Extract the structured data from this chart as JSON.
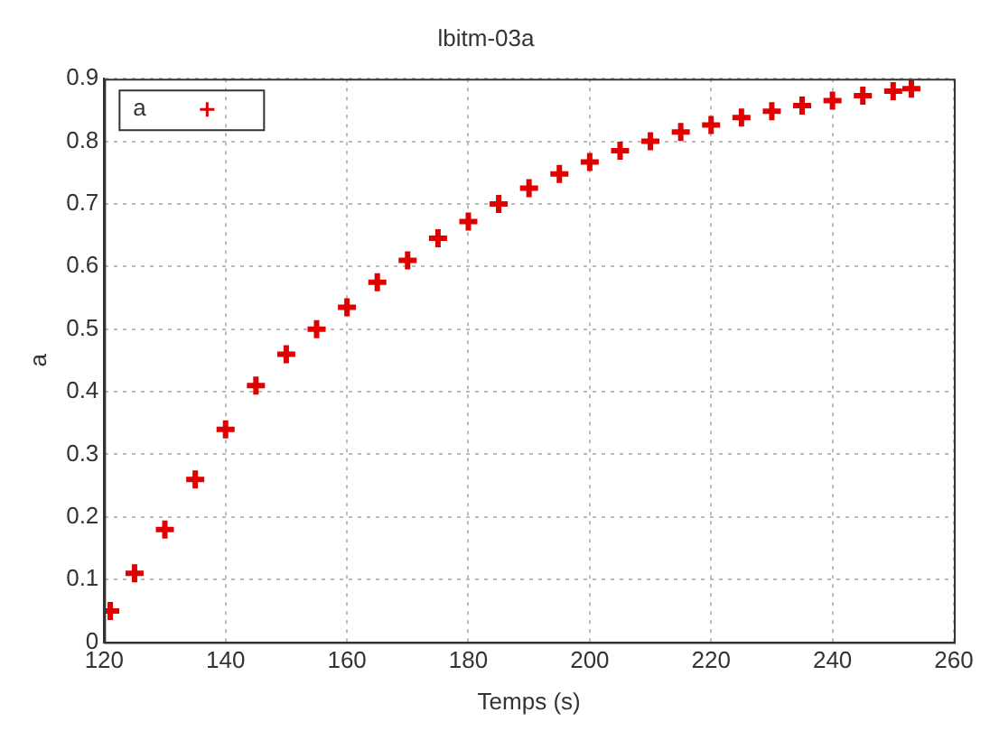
{
  "chart_data": {
    "type": "scatter",
    "title": "lbitm-03a",
    "xlabel": "Temps (s)",
    "ylabel": "a",
    "x": [
      121,
      125,
      130,
      135,
      140,
      145,
      150,
      155,
      160,
      165,
      170,
      175,
      180,
      185,
      190,
      195,
      200,
      205,
      210,
      215,
      220,
      225,
      230,
      235,
      240,
      245,
      250,
      253
    ],
    "series": [
      {
        "name": "a",
        "color": "#e00000",
        "values": [
          0.05,
          0.11,
          0.18,
          0.26,
          0.34,
          0.41,
          0.46,
          0.5,
          0.535,
          0.575,
          0.61,
          0.645,
          0.672,
          0.7,
          0.725,
          0.748,
          0.767,
          0.785,
          0.8,
          0.815,
          0.826,
          0.838,
          0.848,
          0.857,
          0.865,
          0.873,
          0.88,
          0.884
        ]
      }
    ],
    "xlim": [
      120,
      260
    ],
    "xticks": [
      120,
      140,
      160,
      180,
      200,
      220,
      240,
      260
    ],
    "ylim": [
      0,
      0.9
    ],
    "yticks": [
      0,
      0.1,
      0.2,
      0.3,
      0.4,
      0.5,
      0.6,
      0.7,
      0.8,
      0.9
    ],
    "grid": true,
    "legend": "top left",
    "marker": "cross"
  }
}
